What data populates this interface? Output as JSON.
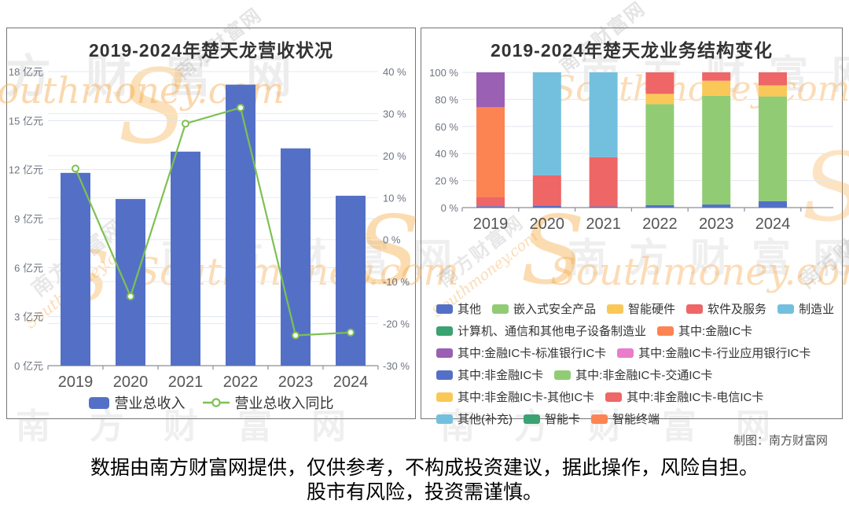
{
  "chart_data": [
    {
      "type": "bar",
      "subtype": "bar-line-combo",
      "title": "2019-2024年楚天龙营收状况",
      "categories": [
        "2019",
        "2020",
        "2021",
        "2022",
        "2023",
        "2024"
      ],
      "bar_series": {
        "name": "营业总收入",
        "unit": "亿元",
        "color": "#5470c6",
        "values": [
          11.8,
          10.2,
          13.1,
          17.2,
          13.3,
          10.4
        ]
      },
      "line_series": {
        "name": "营业总收入同比",
        "unit": "%",
        "color": "#7dc152",
        "values": [
          16.9,
          -13.5,
          27.6,
          31.4,
          -22.8,
          -22.1
        ]
      },
      "y_left": {
        "min": 0,
        "max": 18,
        "step": 3,
        "unit": "亿元"
      },
      "y_right": {
        "min": -30,
        "max": 40,
        "step": 10,
        "unit": "%"
      },
      "grid": true,
      "legend_position": "bottom"
    },
    {
      "type": "bar",
      "subtype": "stacked-bar-100",
      "title": "2019-2024年楚天龙业务结构变化",
      "categories": [
        "2019",
        "2020",
        "2021",
        "2022",
        "2023",
        "2024"
      ],
      "y": {
        "min": 0,
        "max": 100,
        "step": 20,
        "unit": "%"
      },
      "grid": true,
      "legend_position": "bottom",
      "series": [
        {
          "name": "其他",
          "color": "#5470c6",
          "values": [
            1.0,
            1.4,
            0.8,
            1.9,
            2.3,
            4.8
          ]
        },
        {
          "name": "嵌入式安全产品",
          "color": "#91cc75",
          "values": [
            0,
            0,
            0,
            74.6,
            80.4,
            77.4
          ]
        },
        {
          "name": "智能硬件",
          "color": "#fac858",
          "values": [
            0,
            0,
            0,
            7.6,
            11.1,
            8.2
          ]
        },
        {
          "name": "软件及服务",
          "color": "#ee6666",
          "values": [
            6.8,
            22.5,
            36.5,
            15.9,
            6.2,
            9.6
          ]
        },
        {
          "name": "制造业",
          "color": "#73c0de",
          "values": [
            0,
            76.1,
            62.7,
            0,
            0,
            0
          ]
        },
        {
          "name": "计算机、通信和其他电子设备制造业",
          "color": "#3ba272",
          "values": [
            0,
            0,
            0,
            0,
            0,
            0
          ]
        },
        {
          "name": "其中:金融IC卡",
          "color": "#fc8452",
          "values": [
            66.4,
            0,
            0,
            0,
            0,
            0
          ]
        },
        {
          "name": "其中:金融IC卡-标准银行IC卡",
          "color": "#9a60b4",
          "values": [
            25.8,
            0,
            0,
            0,
            0,
            0
          ]
        },
        {
          "name": "其中:金融IC卡-行业应用银行IC卡",
          "color": "#ea7ccc",
          "values": [
            0,
            0,
            0,
            0,
            0,
            0
          ]
        },
        {
          "name": "其中:非金融IC卡",
          "color": "#5470c6",
          "values": [
            0,
            0,
            0,
            0,
            0,
            0
          ]
        },
        {
          "name": "其中:非金融IC卡-交通IC卡",
          "color": "#91cc75",
          "values": [
            0,
            0,
            0,
            0,
            0,
            0
          ]
        },
        {
          "name": "其中:非金融IC卡-其他IC卡",
          "color": "#fac858",
          "values": [
            0,
            0,
            0,
            0,
            0,
            0
          ]
        },
        {
          "name": "其中:非金融IC卡-电信IC卡",
          "color": "#ee6666",
          "values": [
            0,
            0,
            0,
            0,
            0,
            0
          ]
        },
        {
          "name": "其他(补充)",
          "color": "#73c0de",
          "values": [
            0,
            0,
            0,
            0,
            0,
            0
          ]
        },
        {
          "name": "智能卡",
          "color": "#3ba272",
          "values": [
            0,
            0,
            0,
            0,
            0,
            0
          ]
        },
        {
          "name": "智能终端",
          "color": "#fc8452",
          "values": [
            0,
            0,
            0,
            0,
            0,
            0
          ]
        }
      ]
    }
  ],
  "credit": "制图：南方财富网",
  "footer": {
    "line1": "数据由南方财富网提供，仅供参考，不构成投资建议，据此操作，风险自担。",
    "line2": "股市有风险，投资需谨慎。"
  },
  "watermark": {
    "cn": "南方财富网",
    "en": "Southmoney.com",
    "swash": "S"
  }
}
